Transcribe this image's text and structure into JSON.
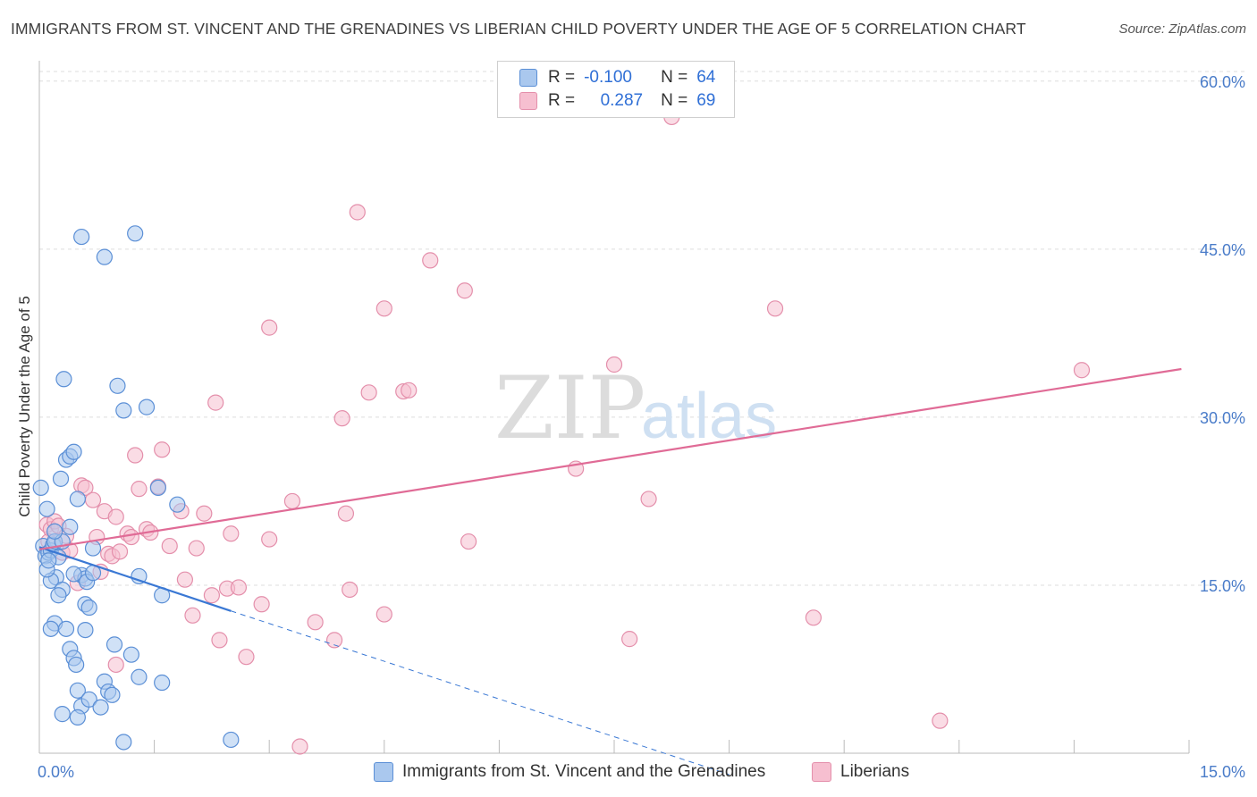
{
  "title": "IMMIGRANTS FROM ST. VINCENT AND THE GRENADINES VS LIBERIAN CHILD POVERTY UNDER THE AGE OF 5 CORRELATION CHART",
  "source": "Source: ZipAtlas.com",
  "watermark": {
    "part1": "ZIP",
    "part2": "atlas"
  },
  "colors": {
    "blue_fill": "#aac8ee",
    "blue_stroke": "#5b8fd6",
    "blue_line": "#3a78d4",
    "pink_fill": "#f6bfd0",
    "pink_stroke": "#e48fab",
    "pink_line": "#e06b96",
    "axis_text": "#4a7cc9"
  },
  "legend": {
    "rows": [
      {
        "r_label": "R =",
        "r_value": "-0.100",
        "n_label": "N =",
        "n_value": "64"
      },
      {
        "r_label": "R =",
        "r_value": "0.287",
        "n_label": "N =",
        "n_value": "69"
      }
    ]
  },
  "bottom_legend": {
    "items": [
      {
        "label": "Immigrants from St. Vincent and the Grenadines"
      },
      {
        "label": "Liberians"
      }
    ]
  },
  "chart_data": {
    "type": "scatter",
    "xlabel": "",
    "ylabel": "Child Poverty Under the Age of 5",
    "xlim": [
      0,
      15
    ],
    "ylim": [
      0,
      61.5
    ],
    "x_tick_labels": {
      "left": "0.0%",
      "right": "15.0%"
    },
    "y_ticks": [
      {
        "value": 15,
        "label": "15.0%"
      },
      {
        "value": 30,
        "label": "30.0%"
      },
      {
        "value": 45,
        "label": "45.0%"
      },
      {
        "value": 60,
        "label": "60.0%"
      }
    ],
    "grid": true,
    "series": [
      {
        "name": "Immigrants from St. Vincent and the Grenadines",
        "trend": {
          "x0": 0.0,
          "y0": 18.4,
          "x1": 2.5,
          "y1": 12.7,
          "dash_to_x": 9.0,
          "dash_to_y": -1.9
        },
        "points": [
          [
            0.02,
            23.7
          ],
          [
            0.1,
            21.8
          ],
          [
            0.05,
            18.5
          ],
          [
            0.08,
            17.6
          ],
          [
            0.12,
            17.9
          ],
          [
            0.15,
            18.1
          ],
          [
            0.18,
            18.6
          ],
          [
            0.2,
            18.9
          ],
          [
            0.25,
            17.5
          ],
          [
            0.22,
            15.7
          ],
          [
            0.15,
            15.4
          ],
          [
            0.3,
            14.6
          ],
          [
            0.25,
            14.1
          ],
          [
            0.28,
            24.5
          ],
          [
            0.32,
            33.4
          ],
          [
            0.35,
            26.2
          ],
          [
            0.4,
            26.5
          ],
          [
            0.45,
            26.9
          ],
          [
            0.5,
            22.7
          ],
          [
            0.55,
            15.9
          ],
          [
            0.6,
            15.6
          ],
          [
            0.62,
            15.3
          ],
          [
            0.6,
            13.3
          ],
          [
            0.65,
            13.0
          ],
          [
            0.2,
            11.6
          ],
          [
            0.15,
            11.1
          ],
          [
            0.35,
            11.1
          ],
          [
            0.6,
            11.0
          ],
          [
            0.4,
            9.3
          ],
          [
            0.45,
            8.5
          ],
          [
            0.48,
            7.9
          ],
          [
            0.5,
            5.6
          ],
          [
            0.55,
            4.2
          ],
          [
            0.3,
            3.5
          ],
          [
            0.5,
            3.2
          ],
          [
            0.65,
            4.8
          ],
          [
            0.8,
            4.1
          ],
          [
            0.85,
            6.4
          ],
          [
            0.9,
            5.5
          ],
          [
            0.95,
            5.2
          ],
          [
            0.98,
            9.7
          ],
          [
            1.2,
            8.8
          ],
          [
            1.3,
            6.8
          ],
          [
            1.6,
            6.3
          ],
          [
            1.3,
            15.8
          ],
          [
            1.6,
            14.1
          ],
          [
            1.55,
            23.7
          ],
          [
            1.8,
            22.2
          ],
          [
            1.02,
            32.8
          ],
          [
            1.1,
            30.6
          ],
          [
            1.4,
            30.9
          ],
          [
            0.85,
            44.3
          ],
          [
            1.25,
            46.4
          ],
          [
            0.55,
            46.1
          ],
          [
            1.1,
            1.0
          ],
          [
            2.5,
            1.2
          ],
          [
            0.1,
            16.4
          ],
          [
            0.3,
            18.9
          ],
          [
            0.45,
            16.0
          ],
          [
            0.7,
            18.3
          ],
          [
            0.4,
            20.2
          ],
          [
            0.2,
            19.8
          ],
          [
            0.12,
            17.2
          ],
          [
            0.7,
            16.1
          ]
        ]
      },
      {
        "name": "Liberians",
        "trend": {
          "x0": 0.0,
          "y0": 18.2,
          "x1": 14.9,
          "y1": 34.3
        },
        "points": [
          [
            0.1,
            20.4
          ],
          [
            0.15,
            20.0
          ],
          [
            0.2,
            20.7
          ],
          [
            0.25,
            20.3
          ],
          [
            0.12,
            18.9
          ],
          [
            0.35,
            19.4
          ],
          [
            0.3,
            17.9
          ],
          [
            0.4,
            18.1
          ],
          [
            0.5,
            15.2
          ],
          [
            0.55,
            23.9
          ],
          [
            0.6,
            23.7
          ],
          [
            0.7,
            22.6
          ],
          [
            0.75,
            19.3
          ],
          [
            0.8,
            16.2
          ],
          [
            0.85,
            21.6
          ],
          [
            0.9,
            17.8
          ],
          [
            0.95,
            17.6
          ],
          [
            1.0,
            21.1
          ],
          [
            1.05,
            18.0
          ],
          [
            1.15,
            19.6
          ],
          [
            1.2,
            19.3
          ],
          [
            1.25,
            26.6
          ],
          [
            1.3,
            23.6
          ],
          [
            1.4,
            20.0
          ],
          [
            1.45,
            19.7
          ],
          [
            1.55,
            23.8
          ],
          [
            1.6,
            27.1
          ],
          [
            1.7,
            18.5
          ],
          [
            1.85,
            21.6
          ],
          [
            1.9,
            15.5
          ],
          [
            2.0,
            12.3
          ],
          [
            2.05,
            18.3
          ],
          [
            2.15,
            21.4
          ],
          [
            2.25,
            14.1
          ],
          [
            2.35,
            10.1
          ],
          [
            2.45,
            14.7
          ],
          [
            2.5,
            19.6
          ],
          [
            2.6,
            14.8
          ],
          [
            2.7,
            8.6
          ],
          [
            2.9,
            13.3
          ],
          [
            3.0,
            19.1
          ],
          [
            3.3,
            22.5
          ],
          [
            3.4,
            0.6
          ],
          [
            3.6,
            11.7
          ],
          [
            3.85,
            10.1
          ],
          [
            3.95,
            29.9
          ],
          [
            4.0,
            21.4
          ],
          [
            4.05,
            14.6
          ],
          [
            4.3,
            32.2
          ],
          [
            4.5,
            12.4
          ],
          [
            4.75,
            32.3
          ],
          [
            4.82,
            32.4
          ],
          [
            5.6,
            18.9
          ],
          [
            5.55,
            41.3
          ],
          [
            5.1,
            44.0
          ],
          [
            4.5,
            39.7
          ],
          [
            4.15,
            48.3
          ],
          [
            3.0,
            38.0
          ],
          [
            2.3,
            31.3
          ],
          [
            7.0,
            25.4
          ],
          [
            7.5,
            34.7
          ],
          [
            7.7,
            10.2
          ],
          [
            7.95,
            22.7
          ],
          [
            9.6,
            39.7
          ],
          [
            10.1,
            12.1
          ],
          [
            11.75,
            2.9
          ],
          [
            13.6,
            34.2
          ],
          [
            8.25,
            56.8
          ],
          [
            1.0,
            7.9
          ]
        ]
      }
    ]
  }
}
